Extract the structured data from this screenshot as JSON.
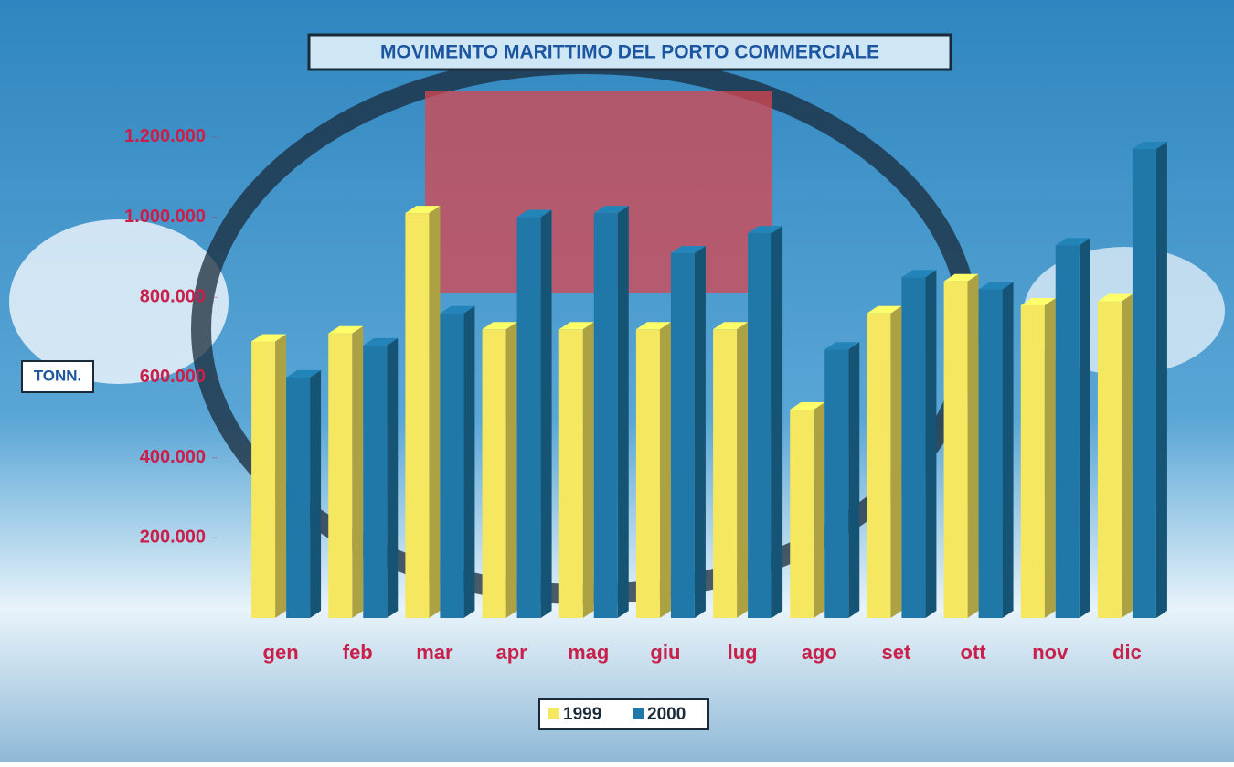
{
  "chart_data": {
    "type": "bar",
    "title": "MOVIMENTO MARITTIMO DEL PORTO COMMERCIALE",
    "y_label": "TONN.",
    "categories": [
      "gen",
      "feb",
      "mar",
      "apr",
      "mag",
      "giu",
      "lug",
      "ago",
      "set",
      "ott",
      "nov",
      "dic"
    ],
    "series": [
      {
        "name": "1999",
        "color": "#f5e860",
        "values": [
          690000,
          710000,
          1010000,
          720000,
          720000,
          720000,
          720000,
          520000,
          760000,
          840000,
          780000,
          790000
        ]
      },
      {
        "name": "2000",
        "color": "#1f78a8",
        "values": [
          600000,
          680000,
          760000,
          1000000,
          1010000,
          910000,
          960000,
          670000,
          850000,
          820000,
          930000,
          1170000
        ]
      }
    ],
    "ylim": [
      0,
      1300000
    ],
    "yticks": [
      {
        "value": 200000,
        "label": "200.000"
      },
      {
        "value": 400000,
        "label": "400.000"
      },
      {
        "value": 600000,
        "label": "600.000"
      },
      {
        "value": 800000,
        "label": "800.000"
      },
      {
        "value": 1000000,
        "label": "1.000.000"
      },
      {
        "value": 1200000,
        "label": "1.200.000"
      }
    ],
    "grid": false,
    "legend": "bottom"
  }
}
